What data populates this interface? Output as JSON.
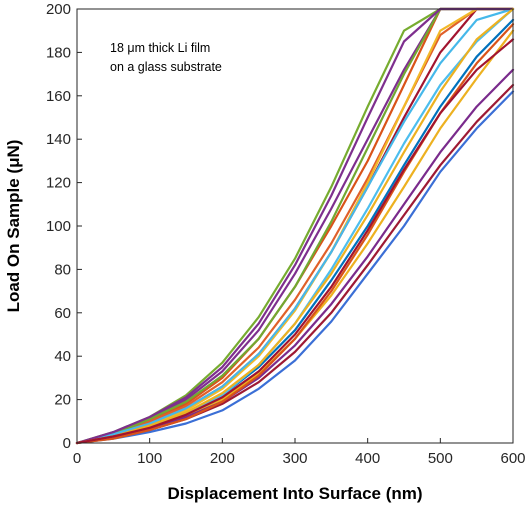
{
  "chart_data": {
    "type": "line",
    "title": "",
    "xlabel": "Displacement Into Surface (nm)",
    "ylabel": "Load On Sample (μN)",
    "xlim": [
      0,
      600
    ],
    "ylim": [
      0,
      200
    ],
    "x_ticks": [
      "0",
      "100",
      "200",
      "300",
      "400",
      "500",
      "600"
    ],
    "y_ticks": [
      "0",
      "20",
      "40",
      "60",
      "80",
      "100",
      "120",
      "140",
      "160",
      "180",
      "200"
    ],
    "grid": false,
    "legend": "none",
    "annotation": [
      "18 μm thick Li film",
      "on a glass substrate"
    ],
    "x": [
      0,
      50,
      100,
      150,
      200,
      250,
      300,
      350,
      400,
      450,
      500,
      550,
      600
    ],
    "series": [
      {
        "color": "#0072BD",
        "values": [
          0,
          3,
          8,
          14,
          22,
          35,
          52,
          75,
          100,
          128,
          155,
          178,
          195
        ]
      },
      {
        "color": "#D95319",
        "values": [
          0,
          4,
          10,
          18,
          30,
          48,
          72,
          100,
          130,
          165,
          200,
          200,
          200
        ]
      },
      {
        "color": "#EDB120",
        "values": [
          0,
          3,
          7,
          12,
          20,
          32,
          48,
          68,
          92,
          118,
          145,
          168,
          190
        ]
      },
      {
        "color": "#7E2F8E",
        "values": [
          0,
          4,
          11,
          20,
          33,
          52,
          78,
          108,
          140,
          172,
          200,
          200,
          200
        ]
      },
      {
        "color": "#77AC30",
        "values": [
          0,
          5,
          12,
          22,
          37,
          58,
          85,
          118,
          155,
          190,
          200,
          200,
          200
        ]
      },
      {
        "color": "#4DBEEE",
        "values": [
          0,
          3,
          7,
          13,
          22,
          36,
          55,
          80,
          108,
          138,
          165,
          185,
          200
        ]
      },
      {
        "color": "#A2142F",
        "values": [
          0,
          4,
          9,
          16,
          26,
          41,
          62,
          88,
          118,
          150,
          180,
          200,
          200
        ]
      },
      {
        "color": "#3B6FD6",
        "values": [
          0,
          2,
          5,
          9,
          15,
          25,
          38,
          56,
          78,
          100,
          125,
          145,
          162
        ]
      },
      {
        "color": "#E0602A",
        "values": [
          0,
          4,
          10,
          17,
          28,
          44,
          66,
          92,
          122,
          155,
          188,
          200,
          200
        ]
      },
      {
        "color": "#F2B829",
        "values": [
          0,
          3,
          8,
          15,
          25,
          40,
          61,
          88,
          120,
          155,
          190,
          200,
          200
        ]
      },
      {
        "color": "#7A2B8C",
        "values": [
          0,
          3,
          7,
          12,
          19,
          30,
          45,
          64,
          86,
          110,
          134,
          155,
          172
        ]
      },
      {
        "color": "#72A832",
        "values": [
          0,
          4,
          11,
          19,
          31,
          48,
          72,
          102,
          136,
          170,
          200,
          200,
          200
        ]
      },
      {
        "color": "#45B8EA",
        "values": [
          0,
          4,
          9,
          16,
          26,
          41,
          62,
          88,
          118,
          148,
          175,
          195,
          200
        ]
      },
      {
        "color": "#9E1A34",
        "values": [
          0,
          3,
          6,
          11,
          18,
          28,
          42,
          60,
          82,
          105,
          128,
          148,
          165
        ]
      },
      {
        "color": "#D95319",
        "values": [
          0,
          2,
          6,
          11,
          19,
          31,
          48,
          70,
          96,
          125,
          152,
          175,
          193
        ]
      },
      {
        "color": "#7E2F8E",
        "values": [
          0,
          5,
          12,
          21,
          35,
          55,
          82,
          114,
          150,
          185,
          200,
          200,
          200
        ]
      },
      {
        "color": "#EDB120",
        "values": [
          0,
          3,
          8,
          14,
          23,
          36,
          55,
          78,
          105,
          134,
          162,
          186,
          200
        ]
      },
      {
        "color": "#A2142F",
        "values": [
          0,
          3,
          7,
          13,
          21,
          33,
          50,
          72,
          98,
          126,
          152,
          172,
          186
        ]
      }
    ]
  }
}
